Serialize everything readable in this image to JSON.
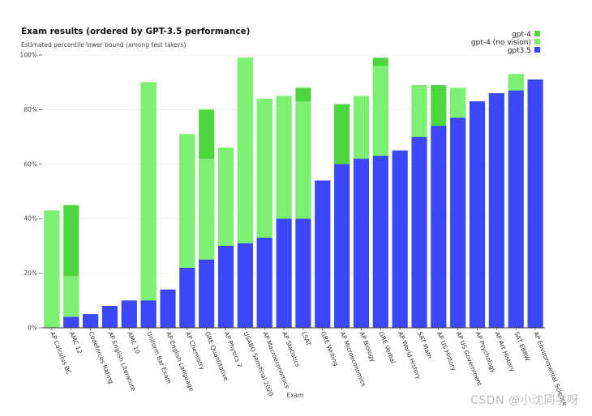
{
  "chart_data": {
    "type": "bar",
    "stacked": "overlay",
    "title": "Exam results (ordered by GPT-3.5 performance)",
    "subtitle": "Estimated percentile lower bound (among test takers)",
    "xlabel": "Exam",
    "ylabel": "",
    "ylim": [
      0,
      100
    ],
    "ytick_values": [
      0,
      20,
      40,
      60,
      80,
      100
    ],
    "ytick_labels": [
      "0%",
      "20%",
      "40%",
      "60%",
      "80%",
      "100%"
    ],
    "grid": true,
    "legend_position": "top-right",
    "categories": [
      "AP Calculus BC",
      "AMC 12",
      "Codeforces Rating",
      "AP English Literature",
      "AMC 10",
      "Uniform Bar Exam",
      "AP English Language",
      "AP Chemistry",
      "GRE Quantitative",
      "AP Physics 2",
      "USABO Semifinal 2020",
      "AP Macroeconomics",
      "AP Statistics",
      "LSAT",
      "GRE Writing",
      "AP Microeconomics",
      "AP Biology",
      "GRE Verbal",
      "AP World History",
      "SAT Math",
      "AP US History",
      "AP US Government",
      "AP Psychology",
      "AP Art History",
      "SAT EBRW",
      "AP Environmental Science"
    ],
    "series": [
      {
        "name": "gpt3.5",
        "color": "#3d47fa",
        "values": [
          0,
          4,
          5,
          8,
          10,
          10,
          14,
          22,
          25,
          30,
          31,
          33,
          40,
          40,
          54,
          60,
          62,
          63,
          65,
          70,
          74,
          77,
          83,
          86,
          87,
          91
        ]
      },
      {
        "name": "gpt-4 (no vision)",
        "color": "#7df073",
        "values": [
          43,
          19,
          5,
          8,
          10,
          90,
          14,
          71,
          62,
          66,
          99,
          84,
          85,
          83,
          54,
          60,
          85,
          96,
          65,
          89,
          74,
          88,
          83,
          86,
          93,
          91
        ]
      },
      {
        "name": "gpt-4",
        "color": "#4ed640",
        "values": [
          43,
          45,
          5,
          8,
          10,
          90,
          14,
          71,
          80,
          66,
          99,
          84,
          85,
          88,
          54,
          82,
          85,
          99,
          65,
          89,
          89,
          88,
          83,
          86,
          93,
          91
        ]
      }
    ],
    "legend": [
      {
        "name": "gpt-4",
        "color": "#4ed640"
      },
      {
        "name": "gpt-4 (no vision)",
        "color": "#7df073"
      },
      {
        "name": "gpt3.5",
        "color": "#3d47fa"
      }
    ]
  },
  "watermark": "CSDN @小沈同学呀"
}
